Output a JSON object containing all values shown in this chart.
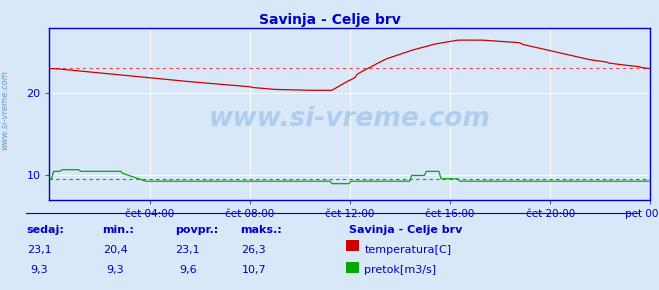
{
  "title": "Savinja - Celje brv",
  "title_color": "#0000cc",
  "bg_color": "#d8e8f8",
  "plot_bg_color": "#d8e8f8",
  "grid_color": "#ffffff",
  "border_color": "#0000cc",
  "tick_color": "#0000cc",
  "watermark": "www.si-vreme.com",
  "watermark_color": "#aaccee",
  "sidebar_label": "www.si-vreme.com",
  "sidebar_color": "#6699cc",
  "x_tick_labels": [
    "čet 04:00",
    "čet 08:00",
    "čet 12:00",
    "čet 16:00",
    "čet 20:00",
    "pet 00:00"
  ],
  "ylim": [
    7,
    28
  ],
  "y_ticks": [
    10,
    20
  ],
  "temp_avg": 23.1,
  "flow_avg": 9.6,
  "temp_color": "#cc0000",
  "flow_color": "#00aa00",
  "avg_temp_color": "#ff4444",
  "avg_flow_color": "#00aa00",
  "footer_color": "#0000cc",
  "footer_bold_color": "#0000aa",
  "legend_title": "Savinja - Celje brv",
  "headers": [
    "sedaj:",
    "min.:",
    "povpr.:",
    "maks.:"
  ],
  "temp_vals": [
    "23,1",
    "20,4",
    "23,1",
    "26,3"
  ],
  "flow_vals": [
    "9,3",
    "9,3",
    "9,6",
    "10,7"
  ],
  "temp_legend": "temperatura[C]",
  "flow_legend": "pretok[m3/s]",
  "temp_legend_color": "#cc0000",
  "flow_legend_color": "#00aa00"
}
